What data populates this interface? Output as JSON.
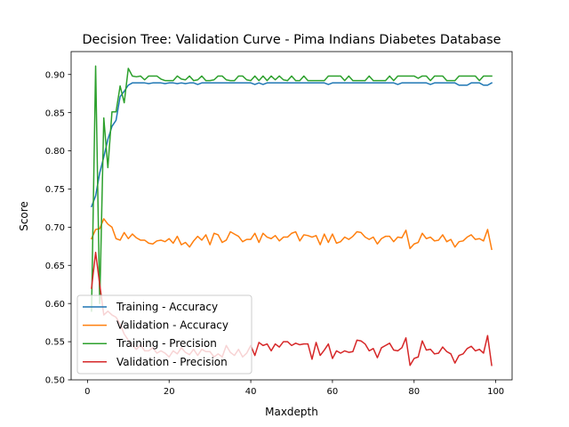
{
  "chart_data": {
    "type": "line",
    "title": "Decision Tree: Validation Curve - Pima Indians Diabetes Database",
    "xlabel": "Maxdepth",
    "ylabel": "Score",
    "xlim": [
      -4,
      104
    ],
    "ylim": [
      0.5,
      0.93
    ],
    "xticks": [
      0,
      20,
      40,
      60,
      80,
      100
    ],
    "xtick_labels": [
      "0",
      "20",
      "40",
      "60",
      "80",
      "100"
    ],
    "yticks": [
      0.5,
      0.55,
      0.6,
      0.65,
      0.7,
      0.75,
      0.8,
      0.85,
      0.9
    ],
    "ytick_labels": [
      "0.50",
      "0.55",
      "0.60",
      "0.65",
      "0.70",
      "0.75",
      "0.80",
      "0.85",
      "0.90"
    ],
    "grid": false,
    "legend_position": "lower-left",
    "x": [
      1,
      2,
      3,
      4,
      5,
      6,
      7,
      8,
      9,
      10,
      11,
      12,
      13,
      14,
      15,
      16,
      17,
      18,
      19,
      20,
      21,
      22,
      23,
      24,
      25,
      26,
      27,
      28,
      29,
      30,
      31,
      32,
      33,
      34,
      35,
      36,
      37,
      38,
      39,
      40,
      41,
      42,
      43,
      44,
      45,
      46,
      47,
      48,
      49,
      50,
      51,
      52,
      53,
      54,
      55,
      56,
      57,
      58,
      59,
      60,
      61,
      62,
      63,
      64,
      65,
      66,
      67,
      68,
      69,
      70,
      71,
      72,
      73,
      74,
      75,
      76,
      77,
      78,
      79,
      80,
      81,
      82,
      83,
      84,
      85,
      86,
      87,
      88,
      89,
      90,
      91,
      92,
      93,
      94,
      95,
      96,
      97,
      98,
      99
    ],
    "series": [
      {
        "name": "Training - Accuracy",
        "color": "#1f77b4",
        "values": [
          0.727,
          0.741,
          0.771,
          0.792,
          0.815,
          0.832,
          0.84,
          0.871,
          0.878,
          0.886,
          0.889,
          0.889,
          0.889,
          0.889,
          0.888,
          0.889,
          0.889,
          0.889,
          0.888,
          0.889,
          0.889,
          0.888,
          0.889,
          0.888,
          0.889,
          0.889,
          0.887,
          0.889,
          0.889,
          0.889,
          0.889,
          0.889,
          0.889,
          0.889,
          0.889,
          0.889,
          0.889,
          0.889,
          0.889,
          0.889,
          0.887,
          0.889,
          0.887,
          0.889,
          0.889,
          0.889,
          0.889,
          0.889,
          0.889,
          0.889,
          0.889,
          0.889,
          0.889,
          0.889,
          0.889,
          0.889,
          0.889,
          0.889,
          0.887,
          0.889,
          0.889,
          0.889,
          0.889,
          0.889,
          0.889,
          0.889,
          0.889,
          0.889,
          0.889,
          0.889,
          0.889,
          0.889,
          0.889,
          0.889,
          0.889,
          0.887,
          0.889,
          0.889,
          0.889,
          0.889,
          0.889,
          0.889,
          0.889,
          0.887,
          0.889,
          0.889,
          0.889,
          0.889,
          0.889,
          0.889,
          0.886,
          0.886,
          0.886,
          0.889,
          0.889,
          0.889,
          0.886,
          0.886,
          0.889
        ]
      },
      {
        "name": "Validation - Accuracy",
        "color": "#ff7f0e",
        "values": [
          0.685,
          0.697,
          0.698,
          0.711,
          0.704,
          0.7,
          0.685,
          0.683,
          0.693,
          0.685,
          0.691,
          0.686,
          0.683,
          0.683,
          0.679,
          0.678,
          0.682,
          0.683,
          0.681,
          0.685,
          0.679,
          0.688,
          0.677,
          0.68,
          0.674,
          0.682,
          0.688,
          0.683,
          0.69,
          0.677,
          0.692,
          0.69,
          0.68,
          0.683,
          0.694,
          0.691,
          0.688,
          0.681,
          0.684,
          0.684,
          0.692,
          0.68,
          0.692,
          0.687,
          0.685,
          0.689,
          0.682,
          0.687,
          0.687,
          0.692,
          0.694,
          0.682,
          0.69,
          0.689,
          0.687,
          0.689,
          0.677,
          0.691,
          0.68,
          0.691,
          0.679,
          0.681,
          0.687,
          0.684,
          0.688,
          0.694,
          0.693,
          0.687,
          0.684,
          0.687,
          0.678,
          0.685,
          0.688,
          0.688,
          0.681,
          0.687,
          0.686,
          0.696,
          0.672,
          0.678,
          0.68,
          0.692,
          0.685,
          0.687,
          0.682,
          0.683,
          0.69,
          0.681,
          0.684,
          0.674,
          0.681,
          0.682,
          0.687,
          0.69,
          0.684,
          0.685,
          0.682,
          0.697,
          0.671
        ]
      },
      {
        "name": "Training - Precision",
        "color": "#2ca02c",
        "values": [
          0.59,
          0.911,
          0.6,
          0.843,
          0.778,
          0.851,
          0.851,
          0.885,
          0.863,
          0.908,
          0.898,
          0.897,
          0.898,
          0.893,
          0.898,
          0.898,
          0.898,
          0.894,
          0.892,
          0.892,
          0.892,
          0.898,
          0.894,
          0.893,
          0.898,
          0.892,
          0.893,
          0.898,
          0.892,
          0.892,
          0.893,
          0.898,
          0.898,
          0.893,
          0.892,
          0.892,
          0.898,
          0.898,
          0.893,
          0.892,
          0.898,
          0.892,
          0.898,
          0.892,
          0.898,
          0.893,
          0.898,
          0.893,
          0.892,
          0.898,
          0.892,
          0.892,
          0.898,
          0.892,
          0.892,
          0.892,
          0.892,
          0.892,
          0.898,
          0.898,
          0.898,
          0.898,
          0.892,
          0.898,
          0.892,
          0.892,
          0.892,
          0.892,
          0.898,
          0.892,
          0.892,
          0.892,
          0.892,
          0.898,
          0.892,
          0.898,
          0.898,
          0.898,
          0.898,
          0.898,
          0.895,
          0.898,
          0.898,
          0.892,
          0.898,
          0.898,
          0.898,
          0.892,
          0.892,
          0.892,
          0.898,
          0.898,
          0.898,
          0.898,
          0.898,
          0.892,
          0.898,
          0.898,
          0.898
        ]
      },
      {
        "name": "Validation - Precision",
        "color": "#d62728",
        "values": [
          0.62,
          0.667,
          0.625,
          0.585,
          0.59,
          0.585,
          0.582,
          0.573,
          0.56,
          0.552,
          0.545,
          0.54,
          0.546,
          0.538,
          0.538,
          0.542,
          0.535,
          0.538,
          0.535,
          0.53,
          0.538,
          0.534,
          0.542,
          0.536,
          0.533,
          0.54,
          0.532,
          0.54,
          0.537,
          0.537,
          0.53,
          0.534,
          0.53,
          0.545,
          0.536,
          0.532,
          0.54,
          0.53,
          0.535,
          0.545,
          0.532,
          0.549,
          0.545,
          0.547,
          0.538,
          0.547,
          0.543,
          0.55,
          0.55,
          0.545,
          0.548,
          0.546,
          0.547,
          0.547,
          0.527,
          0.549,
          0.532,
          0.539,
          0.547,
          0.528,
          0.538,
          0.535,
          0.538,
          0.536,
          0.537,
          0.552,
          0.551,
          0.547,
          0.538,
          0.541,
          0.529,
          0.542,
          0.545,
          0.548,
          0.539,
          0.538,
          0.542,
          0.555,
          0.519,
          0.528,
          0.53,
          0.551,
          0.539,
          0.54,
          0.534,
          0.535,
          0.543,
          0.537,
          0.534,
          0.522,
          0.532,
          0.534,
          0.541,
          0.544,
          0.538,
          0.54,
          0.535,
          0.558,
          0.519
        ]
      }
    ]
  }
}
